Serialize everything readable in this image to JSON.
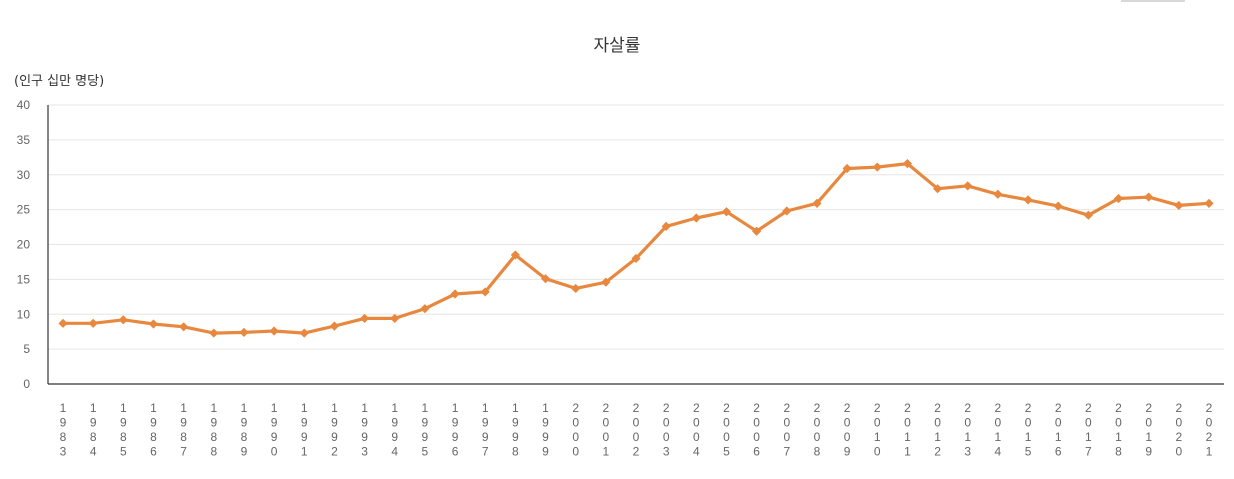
{
  "chart_data": {
    "type": "line",
    "title": "자살률",
    "unit_label": "(인구 십만 명당)",
    "xlabel": "",
    "ylabel": "",
    "ylim": [
      0,
      40
    ],
    "yticks": [
      0,
      5,
      10,
      15,
      20,
      25,
      30,
      35,
      40
    ],
    "grid": true,
    "legend": "none",
    "line_color": "#e8883f",
    "categories": [
      "1983",
      "1984",
      "1985",
      "1986",
      "1987",
      "1988",
      "1989",
      "1990",
      "1991",
      "1992",
      "1993",
      "1994",
      "1995",
      "1996",
      "1997",
      "1998",
      "1999",
      "2000",
      "2001",
      "2002",
      "2003",
      "2004",
      "2005",
      "2006",
      "2007",
      "2008",
      "2009",
      "2010",
      "2011",
      "2012",
      "2013",
      "2014",
      "2015",
      "2016",
      "2017",
      "2018",
      "2019",
      "2020",
      "2021"
    ],
    "series": [
      {
        "values": [
          8.7,
          8.7,
          9.2,
          8.6,
          8.2,
          7.3,
          7.4,
          7.6,
          7.3,
          8.3,
          9.4,
          9.4,
          10.8,
          12.9,
          13.2,
          18.5,
          15.1,
          13.7,
          14.6,
          18.0,
          22.6,
          23.8,
          24.7,
          21.9,
          24.8,
          25.9,
          30.9,
          31.1,
          31.6,
          28.0,
          28.4,
          27.2,
          26.4,
          25.5,
          24.2,
          26.6,
          26.8,
          25.6,
          25.9
        ]
      }
    ]
  }
}
